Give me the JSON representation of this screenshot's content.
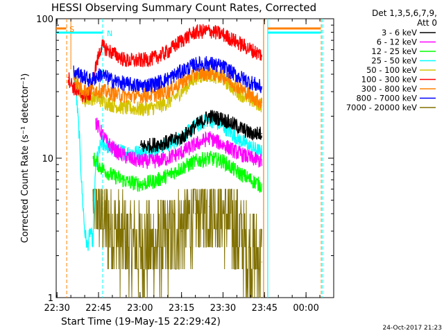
{
  "chart_data": {
    "type": "line",
    "title": "HESSI Observing Summary Count Rates, Corrected",
    "xlabel": "Start Time (19-May-15 22:29:42)",
    "ylabel": "Corrected Count Rate (s⁻¹ detector⁻¹)",
    "yscale": "log",
    "ylim": [
      1,
      100
    ],
    "xlim": [
      "22:29:42",
      "00:10:00"
    ],
    "x_ticks": [
      "22:30",
      "22:45",
      "23:00",
      "23:15",
      "23:30",
      "23:45",
      "00:00"
    ],
    "y_ticks": [
      "1",
      "10",
      "100"
    ],
    "grid": false,
    "legend_position": "right",
    "legend_header": [
      "Det 1,3,5,6,7,9,",
      "Att 0"
    ],
    "flag_labels": [
      "S",
      "N"
    ],
    "timestamp": "24-Oct-2017 21:23",
    "series": [
      {
        "name": "3 - 6 keV",
        "color": "#000000",
        "points": [
          [
            "23:00",
            12
          ],
          [
            "23:10",
            13
          ],
          [
            "23:15",
            14
          ],
          [
            "23:20",
            17
          ],
          [
            "23:25",
            20
          ],
          [
            "23:30",
            19
          ],
          [
            "23:35",
            17
          ],
          [
            "23:40",
            15
          ],
          [
            "23:44",
            15
          ]
        ]
      },
      {
        "name": "6 - 12 keV",
        "color": "#ff00ff",
        "points": [
          [
            "22:44",
            18
          ],
          [
            "22:48",
            13
          ],
          [
            "22:52",
            11
          ],
          [
            "22:56",
            10
          ],
          [
            "23:00",
            9.5
          ],
          [
            "23:05",
            9.5
          ],
          [
            "23:10",
            10
          ],
          [
            "23:15",
            11
          ],
          [
            "23:20",
            12.5
          ],
          [
            "23:25",
            14
          ],
          [
            "23:30",
            12.5
          ],
          [
            "23:35",
            11
          ],
          [
            "23:40",
            10
          ],
          [
            "23:44",
            9.5
          ]
        ]
      },
      {
        "name": "12 - 25 keV",
        "color": "#00ff00",
        "points": [
          [
            "22:43",
            10
          ],
          [
            "22:46",
            8.5
          ],
          [
            "22:50",
            7.5
          ],
          [
            "22:55",
            6.8
          ],
          [
            "23:00",
            6.5
          ],
          [
            "23:05",
            6.8
          ],
          [
            "23:10",
            7.5
          ],
          [
            "23:15",
            8.5
          ],
          [
            "23:20",
            9.5
          ],
          [
            "23:25",
            10
          ],
          [
            "23:30",
            9.5
          ],
          [
            "23:35",
            8
          ],
          [
            "23:40",
            7
          ],
          [
            "23:44",
            6.3
          ]
        ]
      },
      {
        "name": "25 - 50 keV",
        "color": "#00ffff",
        "points": [
          [
            "22:36",
            40
          ],
          [
            "22:37",
            28
          ],
          [
            "22:38",
            15
          ],
          [
            "22:39",
            6
          ],
          [
            "22:40",
            3
          ],
          [
            "22:41",
            2.3
          ],
          [
            "22:42",
            3
          ],
          [
            "22:43",
            2.5
          ],
          [
            "22:44",
            9
          ],
          [
            "22:46",
            13
          ],
          [
            "22:50",
            11.5
          ],
          [
            "22:55",
            11
          ],
          [
            "23:00",
            11
          ],
          [
            "23:05",
            11.5
          ],
          [
            "23:10",
            12.5
          ],
          [
            "23:15",
            14
          ],
          [
            "23:20",
            17
          ],
          [
            "23:25",
            19
          ],
          [
            "23:30",
            17
          ],
          [
            "23:35",
            14
          ],
          [
            "23:40",
            12
          ],
          [
            "23:44",
            11
          ]
        ]
      },
      {
        "name": "50 - 100 keV",
        "color": "#d4c400",
        "points": [
          [
            "22:36",
            41
          ],
          [
            "22:38",
            31
          ],
          [
            "22:40",
            26
          ],
          [
            "22:42",
            27
          ],
          [
            "22:44",
            27
          ],
          [
            "22:46",
            26
          ],
          [
            "22:50",
            24
          ],
          [
            "22:55",
            23
          ],
          [
            "23:00",
            22.5
          ],
          [
            "23:05",
            23
          ],
          [
            "23:10",
            25
          ],
          [
            "23:15",
            30
          ],
          [
            "23:20",
            38
          ],
          [
            "23:25",
            40
          ],
          [
            "23:30",
            37
          ],
          [
            "23:35",
            30
          ],
          [
            "23:40",
            26
          ],
          [
            "23:44",
            24
          ]
        ]
      },
      {
        "name": "100 - 300 keV",
        "color": "#ff0000",
        "points": [
          [
            "22:34",
            38
          ],
          [
            "22:36",
            32
          ],
          [
            "22:38",
            29
          ],
          [
            "22:40",
            28
          ],
          [
            "22:42",
            29
          ],
          [
            "22:44",
            45
          ],
          [
            "22:46",
            64
          ],
          [
            "22:50",
            57
          ],
          [
            "22:55",
            50
          ],
          [
            "23:00",
            50
          ],
          [
            "23:05",
            52
          ],
          [
            "23:10",
            58
          ],
          [
            "23:15",
            70
          ],
          [
            "23:20",
            80
          ],
          [
            "23:25",
            82
          ],
          [
            "23:30",
            77
          ],
          [
            "23:35",
            68
          ],
          [
            "23:40",
            60
          ],
          [
            "23:44",
            55
          ]
        ]
      },
      {
        "name": "300 - 800 keV",
        "color": "#ff8000",
        "points": [
          [
            "22:36",
            38
          ],
          [
            "22:38",
            33
          ],
          [
            "22:40",
            31
          ],
          [
            "22:42",
            31
          ],
          [
            "22:44",
            31
          ],
          [
            "22:46",
            30.5
          ],
          [
            "22:50",
            29
          ],
          [
            "22:55",
            28
          ],
          [
            "23:00",
            28
          ],
          [
            "23:05",
            28.5
          ],
          [
            "23:10",
            30
          ],
          [
            "23:15",
            35
          ],
          [
            "23:20",
            40
          ],
          [
            "23:25",
            41
          ],
          [
            "23:30",
            39
          ],
          [
            "23:35",
            33
          ],
          [
            "23:40",
            28
          ],
          [
            "23:44",
            25
          ]
        ]
      },
      {
        "name": "800 - 7000 keV",
        "color": "#0000ff",
        "points": [
          [
            "22:36",
            42
          ],
          [
            "22:38",
            40
          ],
          [
            "22:40",
            38
          ],
          [
            "22:42",
            36
          ],
          [
            "22:44",
            38
          ],
          [
            "22:46",
            40
          ],
          [
            "22:50",
            36
          ],
          [
            "22:55",
            34
          ],
          [
            "23:00",
            33
          ],
          [
            "23:05",
            34
          ],
          [
            "23:10",
            37
          ],
          [
            "23:15",
            42
          ],
          [
            "23:20",
            47
          ],
          [
            "23:25",
            48
          ],
          [
            "23:30",
            45
          ],
          [
            "23:35",
            39
          ],
          [
            "23:40",
            35
          ],
          [
            "23:44",
            32
          ]
        ]
      },
      {
        "name": "7000 - 20000 keV",
        "color": "#807000",
        "points": [
          [
            "22:43",
            5
          ],
          [
            "22:46",
            4
          ],
          [
            "22:50",
            3
          ],
          [
            "22:55",
            2.5
          ],
          [
            "23:00",
            2.3
          ],
          [
            "23:05",
            2.3
          ],
          [
            "23:10",
            2.5
          ],
          [
            "23:15",
            3
          ],
          [
            "23:20",
            4
          ],
          [
            "23:25",
            4.5
          ],
          [
            "23:30",
            4
          ],
          [
            "23:35",
            3
          ],
          [
            "23:40",
            2
          ],
          [
            "23:44",
            1.8
          ]
        ]
      }
    ]
  },
  "colors": {
    "saa_flag": "#ff8000",
    "night_flag": "#00ffff"
  }
}
